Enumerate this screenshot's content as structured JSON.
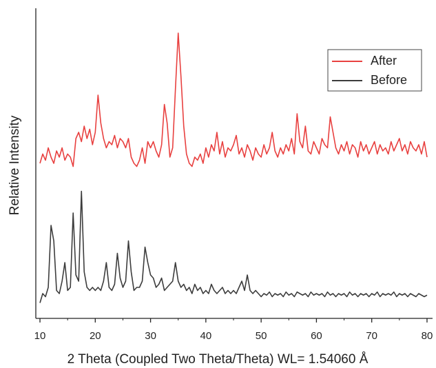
{
  "chart_data": {
    "type": "line",
    "xlabel": "2 Theta (Coupled Two Theta/Theta) WL= 1.54060 Å",
    "ylabel": "Relative Intensity",
    "xlim": [
      9.25,
      81
    ],
    "xticks": [
      10,
      20,
      30,
      40,
      50,
      60,
      70,
      80
    ],
    "ylim": [
      0,
      100
    ],
    "legend": "upper right",
    "x": [
      10,
      10.5,
      11,
      11.5,
      12,
      12.5,
      13,
      13.5,
      14,
      14.5,
      15,
      15.5,
      16,
      16.5,
      17,
      17.5,
      18,
      18.5,
      19,
      19.5,
      20,
      20.5,
      21,
      21.5,
      22,
      22.5,
      23,
      23.5,
      24,
      24.5,
      25,
      25.5,
      26,
      26.5,
      27,
      27.5,
      28,
      28.5,
      29,
      29.5,
      30,
      30.5,
      31,
      31.5,
      32,
      32.5,
      33,
      33.5,
      34,
      34.5,
      35,
      35.5,
      36,
      36.5,
      37,
      37.5,
      38,
      38.5,
      39,
      39.5,
      40,
      40.5,
      41,
      41.5,
      42,
      42.5,
      43,
      43.5,
      44,
      44.5,
      45,
      45.5,
      46,
      46.5,
      47,
      47.5,
      48,
      48.5,
      49,
      49.5,
      50,
      50.5,
      51,
      51.5,
      52,
      52.5,
      53,
      53.5,
      54,
      54.5,
      55,
      55.5,
      56,
      56.5,
      57,
      57.5,
      58,
      58.5,
      59,
      59.5,
      60,
      60.5,
      61,
      61.5,
      62,
      62.5,
      63,
      63.5,
      64,
      64.5,
      65,
      65.5,
      66,
      66.5,
      67,
      67.5,
      68,
      68.5,
      69,
      69.5,
      70,
      70.5,
      71,
      71.5,
      72,
      72.5,
      73,
      73.5,
      74,
      74.5,
      75,
      75.5,
      76,
      76.5,
      77,
      77.5,
      78,
      78.5,
      79,
      79.5,
      80
    ],
    "series": [
      {
        "name": "After",
        "color": "#e8403f",
        "values": [
          50,
          53,
          51,
          55,
          52,
          50,
          54,
          52,
          55,
          51,
          53,
          52,
          49,
          58,
          60,
          57,
          62,
          58,
          61,
          56,
          60,
          72,
          63,
          58,
          55,
          57,
          56,
          59,
          55,
          58,
          57,
          55,
          58,
          52,
          50,
          49,
          51,
          55,
          50,
          57,
          55,
          57,
          54,
          52,
          56,
          69,
          63,
          52,
          55,
          74,
          92,
          78,
          62,
          53,
          50,
          49,
          52,
          51,
          53,
          50,
          55,
          52,
          56,
          54,
          60,
          53,
          57,
          52,
          55,
          54,
          56,
          59,
          53,
          55,
          52,
          56,
          54,
          51,
          55,
          53,
          52,
          56,
          53,
          55,
          60,
          54,
          52,
          55,
          53,
          56,
          54,
          58,
          53,
          66,
          57,
          55,
          62,
          54,
          53,
          57,
          55,
          53,
          58,
          56,
          55,
          65,
          60,
          55,
          53,
          56,
          54,
          57,
          53,
          56,
          55,
          52,
          57,
          54,
          56,
          53,
          55,
          57,
          53,
          56,
          54,
          55,
          53,
          57,
          54,
          56,
          58,
          54,
          56,
          53,
          57,
          55,
          54,
          56,
          53,
          57,
          52
        ]
      },
      {
        "name": "Before",
        "color": "#3c3c3c",
        "values": [
          5,
          8,
          7,
          10,
          30,
          25,
          9,
          8,
          12,
          18,
          9,
          10,
          34,
          14,
          12,
          41,
          15,
          10,
          9,
          10,
          9,
          10,
          9,
          12,
          18,
          10,
          9,
          11,
          21,
          13,
          10,
          12,
          25,
          15,
          9,
          10,
          10,
          12,
          23,
          18,
          14,
          13,
          10,
          11,
          13,
          9,
          10,
          11,
          12,
          18,
          12,
          10,
          11,
          9,
          10,
          8,
          11,
          9,
          10,
          8,
          9,
          8,
          11,
          9,
          8,
          9,
          10,
          8,
          9,
          8,
          9,
          8,
          10,
          12,
          9,
          14,
          9,
          8,
          9,
          8,
          7,
          8,
          7.5,
          8.5,
          7,
          8,
          7.5,
          8,
          7,
          8.5,
          7.5,
          8,
          7,
          8.5,
          8,
          7.5,
          8,
          7,
          8.5,
          7.5,
          8,
          7.5,
          8,
          7,
          8.5,
          7.5,
          8,
          7,
          8,
          7.5,
          8,
          7,
          8.5,
          7.5,
          8,
          7,
          8,
          7.5,
          8,
          7,
          8,
          7.5,
          8.5,
          7,
          8,
          7.5,
          8,
          7.5,
          8.5,
          7,
          8,
          7.5,
          8,
          7,
          8,
          7.5,
          7,
          8,
          7.5,
          7,
          7.5
        ]
      }
    ]
  }
}
